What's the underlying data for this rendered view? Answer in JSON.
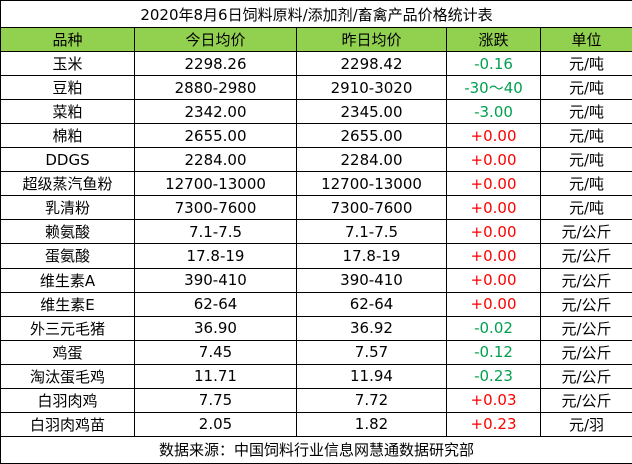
{
  "table": {
    "title": "2020年8月6日饲料原料/添加剂/畜禽产品价格统计表",
    "header": [
      "品种",
      "今日均价",
      "昨日均价",
      "涨跌",
      "单位"
    ],
    "rows": [
      [
        "玉米",
        "2298.26",
        "2298.42",
        "-0.16",
        "元/吨"
      ],
      [
        "豆粕",
        "2880-2980",
        "2910-3020",
        "-30～40",
        "元/吨"
      ],
      [
        "菜粕",
        "2342.00",
        "2345.00",
        "-3.00",
        "元/吨"
      ],
      [
        "棉粕",
        "2655.00",
        "2655.00",
        "+0.00",
        "元/吨"
      ],
      [
        "DDGS",
        "2284.00",
        "2284.00",
        "+0.00",
        "元/吨"
      ],
      [
        "超级蒸汽鱼粉",
        "12700-13000",
        "12700-13000",
        "+0.00",
        "元/吨"
      ],
      [
        "乳清粉",
        "7300-7600",
        "7300-7600",
        "+0.00",
        "元/吨"
      ],
      [
        "赖氨酸",
        "7.1-7.5",
        "7.1-7.5",
        "+0.00",
        "元/公斤"
      ],
      [
        "蛋氨酸",
        "17.8-19",
        "17.8-19",
        "+0.00",
        "元/公斤"
      ],
      [
        "维生素A",
        "390-410",
        "390-410",
        "+0.00",
        "元/公斤"
      ],
      [
        "维生素E",
        "62-64",
        "62-64",
        "+0.00",
        "元/公斤"
      ],
      [
        "外三元毛猪",
        "36.90",
        "36.92",
        "-0.02",
        "元/公斤"
      ],
      [
        "鸡蛋",
        "7.45",
        "7.57",
        "-0.12",
        "元/公斤"
      ],
      [
        "淘汰蛋毛鸡",
        "11.71",
        "11.94",
        "-0.23",
        "元/公斤"
      ],
      [
        "白羽肉鸡",
        "7.75",
        "7.72",
        "+0.03",
        "元/公斤"
      ],
      [
        "白羽肉鸡苗",
        "2.05",
        "1.82",
        "+0.23",
        "元/羽"
      ]
    ],
    "footer": "数据来源：中国饲料行业信息网慧通数据研究部"
  }
}
